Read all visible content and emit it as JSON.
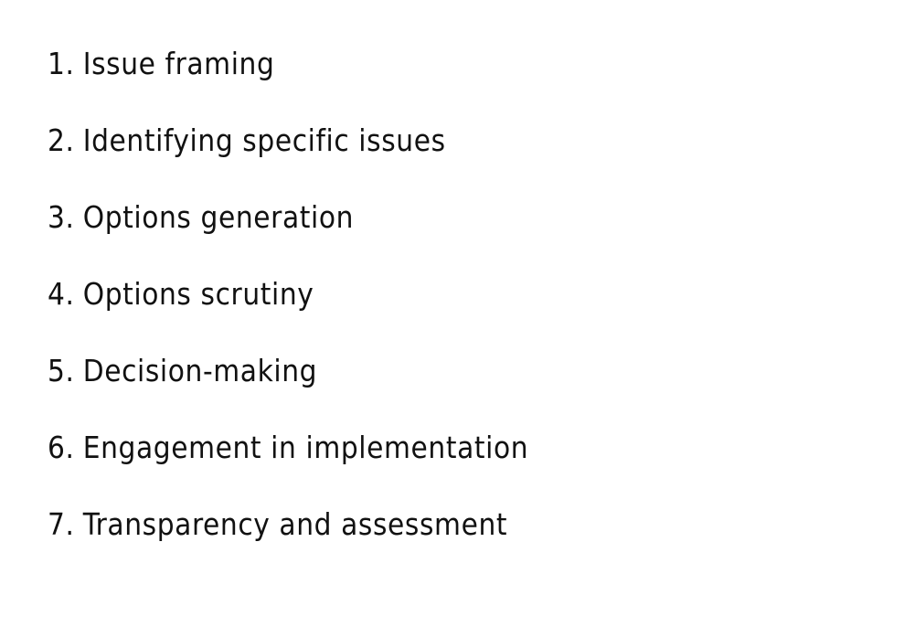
{
  "document": {
    "items": [
      {
        "number": "1.",
        "text": "Issue framing"
      },
      {
        "number": "2.",
        "text": "Identifying specific issues"
      },
      {
        "number": "3.",
        "text": "Options generation"
      },
      {
        "number": "4.",
        "text": "Options scrutiny"
      },
      {
        "number": "5.",
        "text": "Decision-making"
      },
      {
        "number": "6.",
        "text": "Engagement in implementation"
      },
      {
        "number": "7.",
        "text": "Transparency and assessment"
      }
    ]
  }
}
